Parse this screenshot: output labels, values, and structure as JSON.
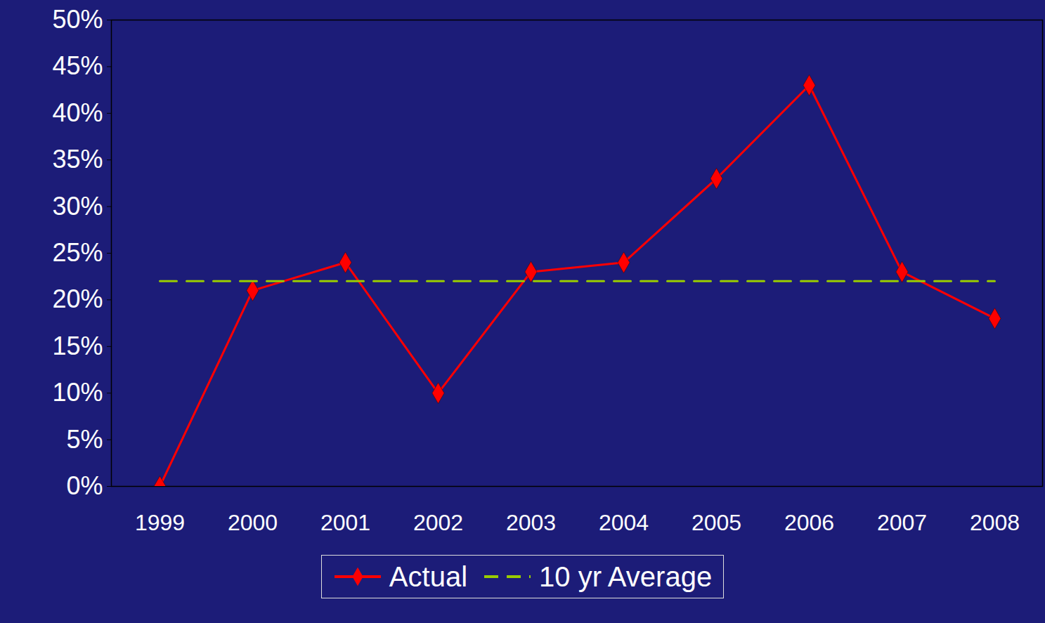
{
  "chart_data": {
    "type": "line",
    "categories": [
      "1999",
      "2000",
      "2001",
      "2002",
      "2003",
      "2004",
      "2005",
      "2006",
      "2007",
      "2008"
    ],
    "series": [
      {
        "name": "Actual",
        "color": "#ff0000",
        "marker": "diamond",
        "line_style": "solid",
        "values": [
          0,
          21,
          24,
          10,
          23,
          24,
          33,
          43,
          23,
          18
        ]
      },
      {
        "name": "10 yr Average",
        "color": "#99cc00",
        "marker": "none",
        "line_style": "dashed",
        "values": [
          22,
          22,
          22,
          22,
          22,
          22,
          22,
          22,
          22,
          22
        ]
      }
    ],
    "ylim": [
      0,
      50
    ],
    "yticks": [
      {
        "value": 0,
        "label": "0%"
      },
      {
        "value": 5,
        "label": "5%"
      },
      {
        "value": 10,
        "label": "10%"
      },
      {
        "value": 15,
        "label": "15%"
      },
      {
        "value": 20,
        "label": "20%"
      },
      {
        "value": 25,
        "label": "25%"
      },
      {
        "value": 30,
        "label": "30%"
      },
      {
        "value": 35,
        "label": "35%"
      },
      {
        "value": 40,
        "label": "40%"
      },
      {
        "value": 45,
        "label": "45%"
      },
      {
        "value": 50,
        "label": "50%"
      }
    ],
    "grid": false,
    "legend": "bottom"
  }
}
